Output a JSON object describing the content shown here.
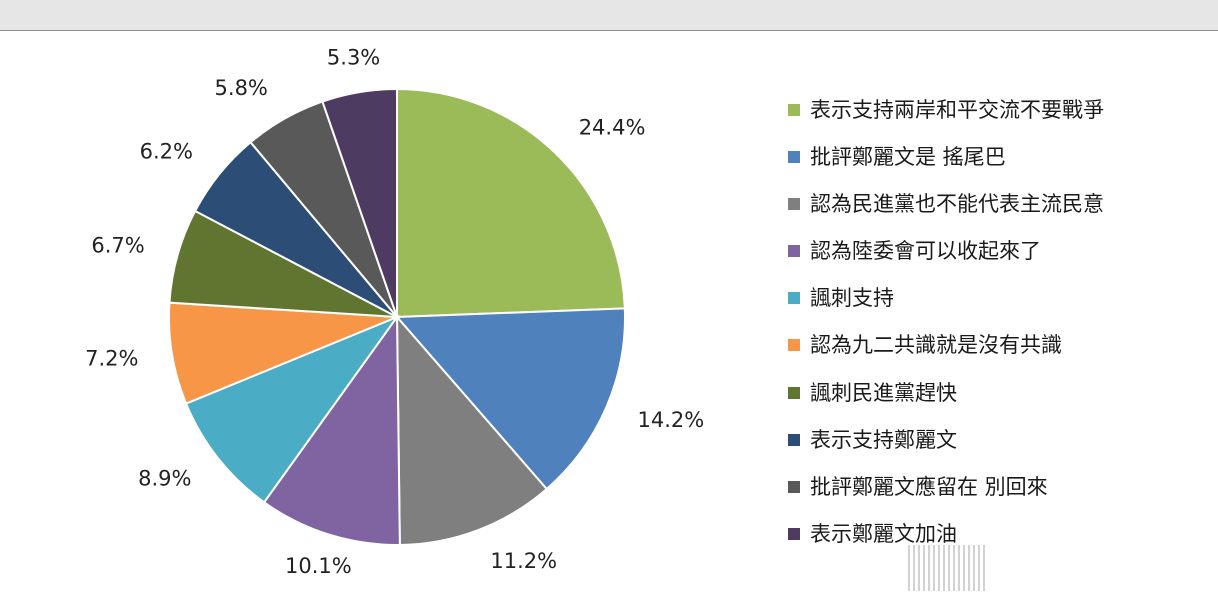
{
  "chart_data": {
    "type": "pie",
    "title": "",
    "legend_position": "right",
    "slices": [
      {
        "label": "表示支持兩岸和平交流不要戰爭",
        "value": 24.4,
        "value_label": "24.4%",
        "color": "#9bbb59"
      },
      {
        "label": "批評鄭麗文是        搖尾巴",
        "value": 14.2,
        "value_label": "14.2%",
        "color": "#4f81bd"
      },
      {
        "label": "認為民進黨也不能代表主流民意",
        "value": 11.2,
        "value_label": "11.2%",
        "color": "#7f7f7f"
      },
      {
        "label": "認為陸委會可以收起來了",
        "value": 10.1,
        "value_label": "10.1%",
        "color": "#8064a2"
      },
      {
        "label": "諷刺支持",
        "value": 8.9,
        "value_label": "8.9%",
        "color": "#4bacc6"
      },
      {
        "label": "認為九二共識就是沒有共識",
        "value": 7.2,
        "value_label": "7.2%",
        "color": "#f79646"
      },
      {
        "label": "諷刺民進黨趕快",
        "value": 6.7,
        "value_label": "6.7%",
        "color": "#5f7530"
      },
      {
        "label": "表示支持鄭麗文",
        "value": 6.2,
        "value_label": "6.2%",
        "color": "#2c4d75"
      },
      {
        "label": "批評鄭麗文應留在      別回來",
        "value": 5.8,
        "value_label": "5.8%",
        "color": "#595959"
      },
      {
        "label": "表示鄭麗文加油",
        "value": 5.3,
        "value_label": "5.3%",
        "color": "#4d3b62"
      }
    ]
  }
}
